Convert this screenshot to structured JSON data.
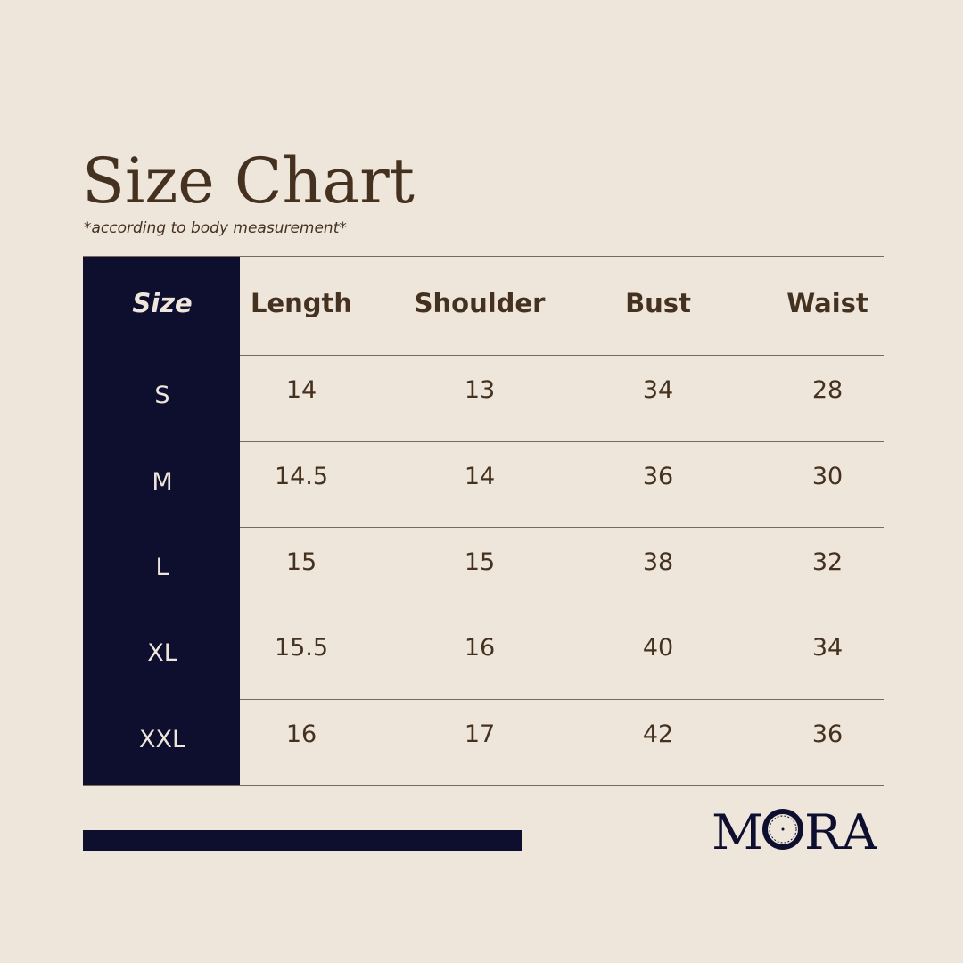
{
  "title": "Size Chart",
  "subtitle": "*according to body measurement*",
  "table": {
    "headers": [
      "Size",
      "Length",
      "Shoulder",
      "Bust",
      "Waist"
    ],
    "rows": [
      [
        "S",
        "14",
        "13",
        "34",
        "28"
      ],
      [
        "M",
        "14.5",
        "14",
        "36",
        "30"
      ],
      [
        "L",
        "15",
        "15",
        "38",
        "32"
      ],
      [
        "XL",
        "15.5",
        "16",
        "40",
        "34"
      ],
      [
        "XXL",
        "16",
        "17",
        "42",
        "36"
      ]
    ]
  },
  "brand": {
    "logo_text": "MORA"
  },
  "colors": {
    "background": "#efe6db",
    "text": "#45311f",
    "navy": "#0e0e2e"
  }
}
